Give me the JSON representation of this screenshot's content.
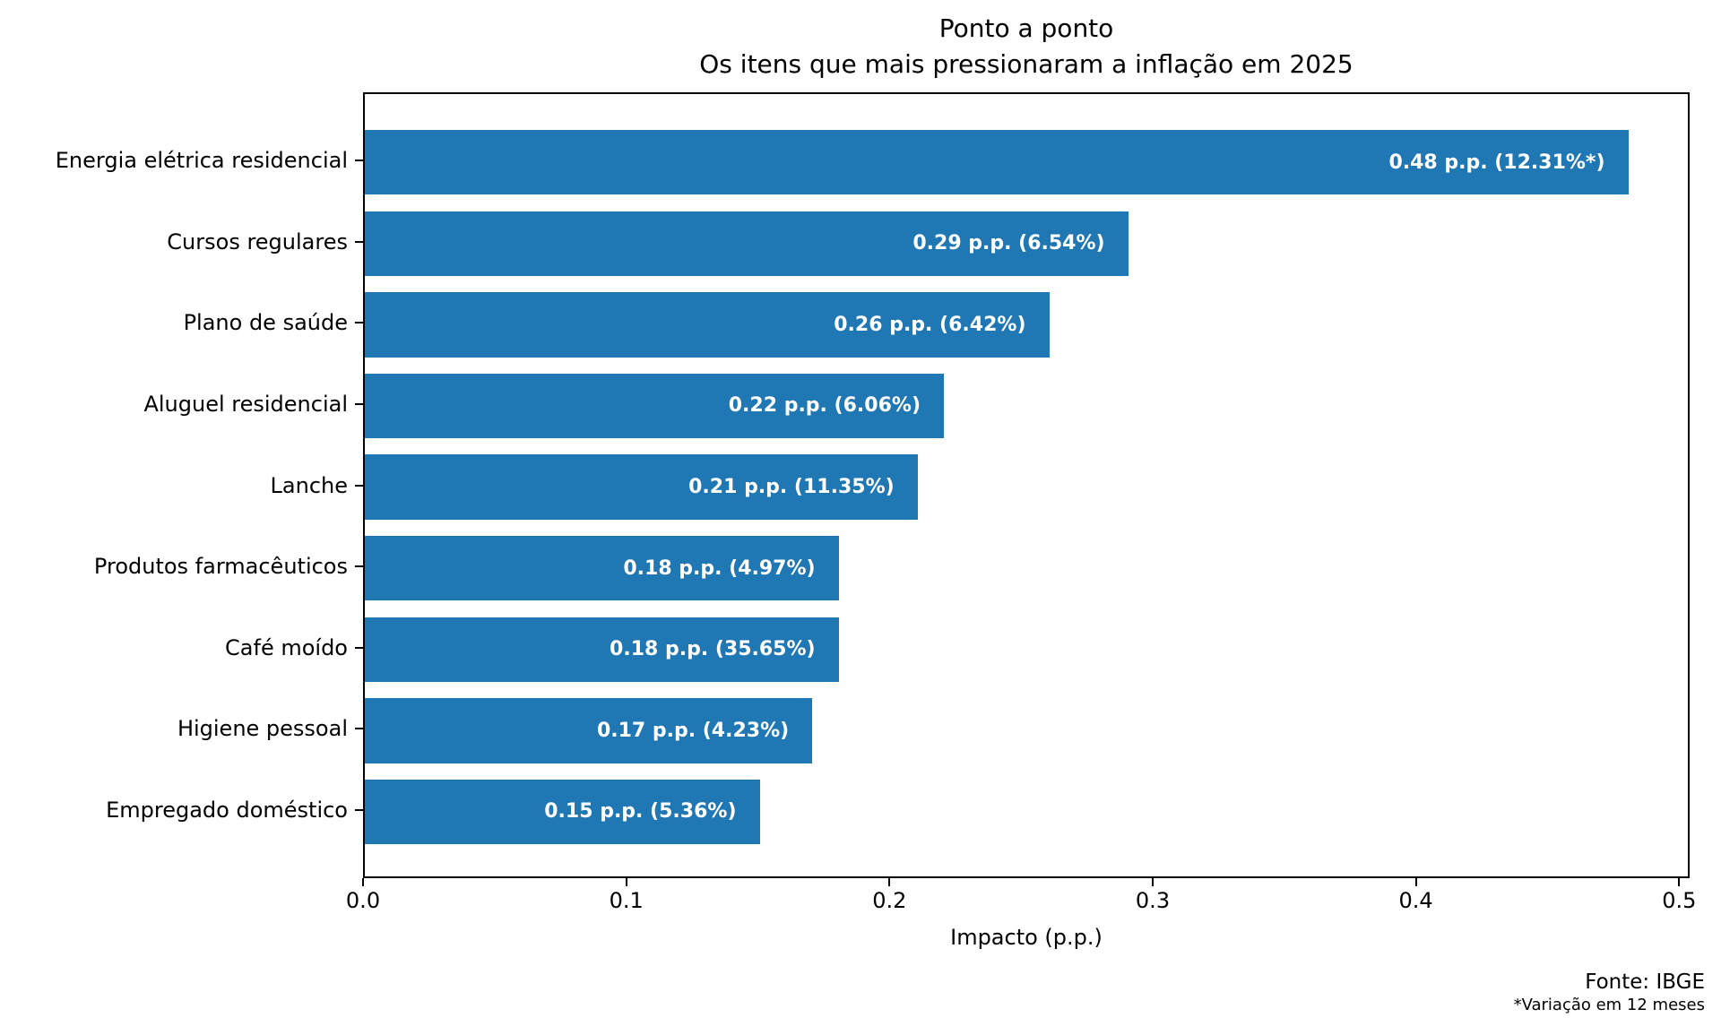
{
  "title": {
    "line1": "Ponto a ponto",
    "line2": "Os itens que mais pressionaram a inflação em 2025"
  },
  "chart_data": {
    "type": "bar",
    "orientation": "horizontal",
    "title": "Ponto a ponto — Os itens que mais pressionaram a inflação em 2025",
    "categories": [
      "Energia elétrica residencial",
      "Cursos regulares",
      "Plano de saúde",
      "Aluguel residencial",
      "Lanche",
      "Produtos farmacêuticos",
      "Café moído",
      "Higiene pessoal",
      "Empregado doméstico"
    ],
    "values": [
      0.48,
      0.29,
      0.26,
      0.22,
      0.21,
      0.18,
      0.18,
      0.17,
      0.15
    ],
    "bar_labels": [
      "0.48 p.p. (12.31%*)",
      "0.29 p.p. (6.54%)",
      "0.26 p.p. (6.42%)",
      "0.22 p.p. (6.06%)",
      "0.21 p.p. (11.35%)",
      "0.18 p.p. (4.97%)",
      "0.18 p.p. (35.65%)",
      "0.17 p.p. (4.23%)",
      "0.15 p.p. (5.36%)"
    ],
    "xlabel": "Impacto (p.p.)",
    "ylabel": "",
    "x_ticks": [
      "0.0",
      "0.1",
      "0.2",
      "0.3",
      "0.4",
      "0.5"
    ],
    "xlim": [
      0,
      0.504
    ],
    "grid": false,
    "legend": "none",
    "bar_color": "#1f77b4",
    "bar_label_color": "#ffffff"
  },
  "footer": {
    "source": "Fonte: IBGE",
    "note": "*Variação em 12 meses"
  }
}
